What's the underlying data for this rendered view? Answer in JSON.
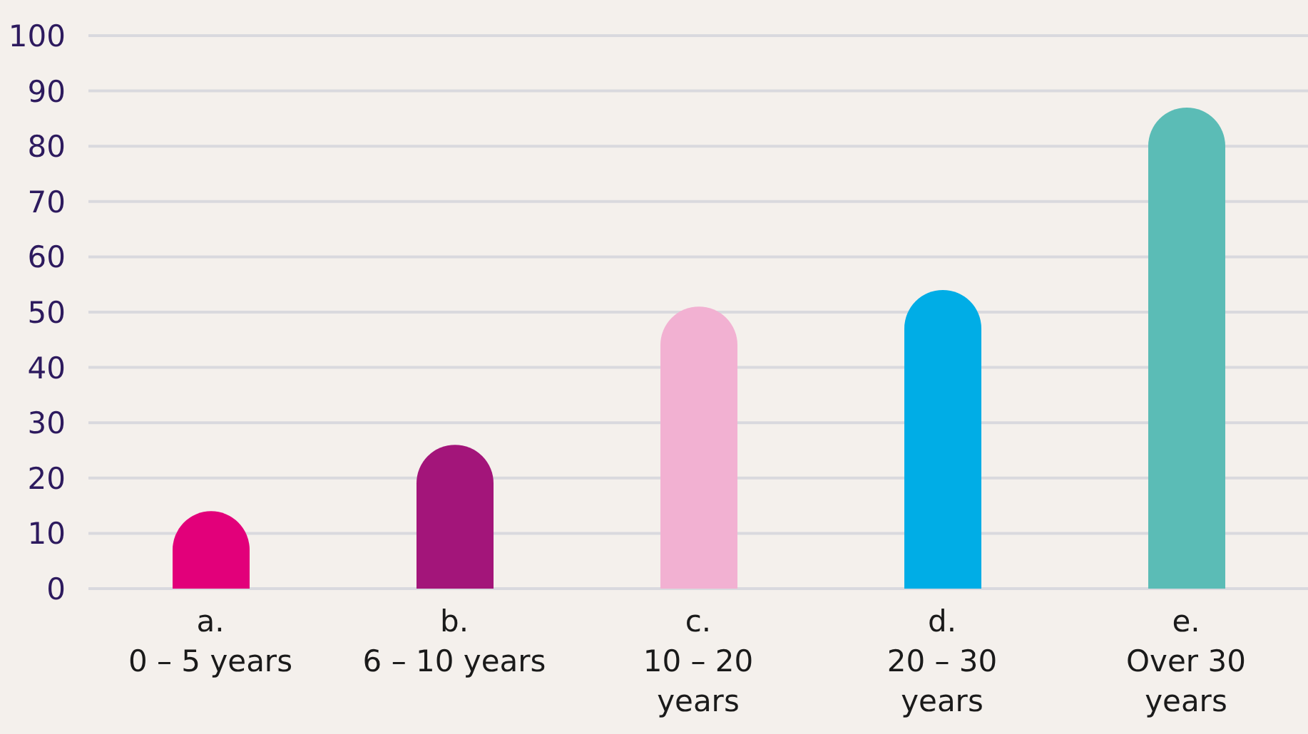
{
  "chart_data": {
    "type": "bar",
    "categories": [
      "a.\n0 – 5 years",
      "b.\n6 – 10 years",
      "c.\n10 – 20\nyears",
      "d.\n20 – 30\nyears",
      "e.\nOver 30\nyears"
    ],
    "values": [
      14,
      26,
      51,
      54,
      87
    ],
    "colors": [
      "#e2007a",
      "#a3157a",
      "#f2b1d2",
      "#00ade6",
      "#5bbcb6"
    ],
    "ylim": [
      0,
      100
    ],
    "yticks": [
      0,
      10,
      20,
      30,
      40,
      50,
      60,
      70,
      80,
      90,
      100
    ],
    "grid": "y"
  }
}
